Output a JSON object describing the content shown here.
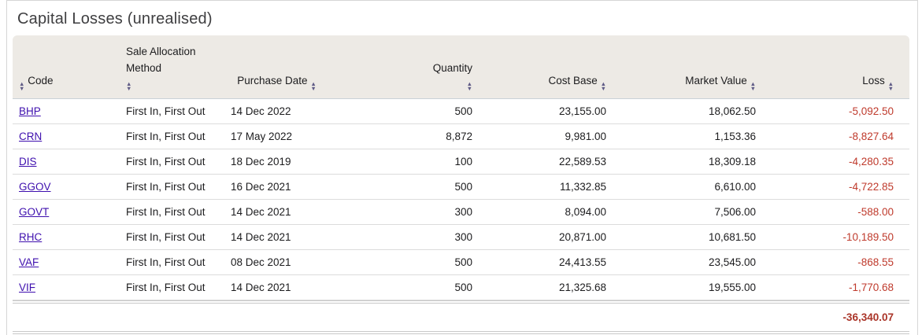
{
  "page": {
    "title": "Capital Losses (unrealised)"
  },
  "table": {
    "columns": [
      {
        "key": "code",
        "label": "Code",
        "align": "left",
        "arrow": "before"
      },
      {
        "key": "sale_allocation_method",
        "label": "Sale Allocation Method",
        "align": "left",
        "arrow": "stacked"
      },
      {
        "key": "purchase_date",
        "label": "Purchase Date",
        "align": "center",
        "arrow": "after"
      },
      {
        "key": "quantity",
        "label": "Quantity",
        "align": "right",
        "arrow": "stacked-right"
      },
      {
        "key": "cost_base",
        "label": "Cost Base",
        "align": "right",
        "arrow": "after"
      },
      {
        "key": "market_value",
        "label": "Market Value",
        "align": "right",
        "arrow": "after"
      },
      {
        "key": "loss",
        "label": "Loss",
        "align": "right",
        "arrow": "after"
      }
    ],
    "rows": [
      [
        "BHP",
        "First In, First Out",
        "14 Dec 2022",
        "500",
        "23,155.00",
        "18,062.50",
        "-5,092.50"
      ],
      [
        "CRN",
        "First In, First Out",
        "17 May 2022",
        "8,872",
        "9,981.00",
        "1,153.36",
        "-8,827.64"
      ],
      [
        "DIS",
        "First In, First Out",
        "18 Dec 2019",
        "100",
        "22,589.53",
        "18,309.18",
        "-4,280.35"
      ],
      [
        "GGOV",
        "First In, First Out",
        "16 Dec 2021",
        "500",
        "11,332.85",
        "6,610.00",
        "-4,722.85"
      ],
      [
        "GOVT",
        "First In, First Out",
        "14 Dec 2021",
        "300",
        "8,094.00",
        "7,506.00",
        "-588.00"
      ],
      [
        "RHC",
        "First In, First Out",
        "14 Dec 2021",
        "300",
        "20,871.00",
        "10,681.50",
        "-10,189.50"
      ],
      [
        "VAF",
        "First In, First Out",
        "08 Dec 2021",
        "500",
        "24,413.55",
        "23,545.00",
        "-868.55"
      ],
      [
        "VIF",
        "First In, First Out",
        "14 Dec 2021",
        "500",
        "21,325.68",
        "19,555.00",
        "-1,770.68"
      ]
    ],
    "total_loss": "-36,340.07"
  },
  "icons": {
    "sort": "sort-icon"
  },
  "colors": {
    "link_color": "#3e0fae",
    "negative_color": "#bf3a2c",
    "total_color": "#aa3428",
    "header_bg": "#edeae5",
    "arrow_color": "#5f5b86"
  }
}
